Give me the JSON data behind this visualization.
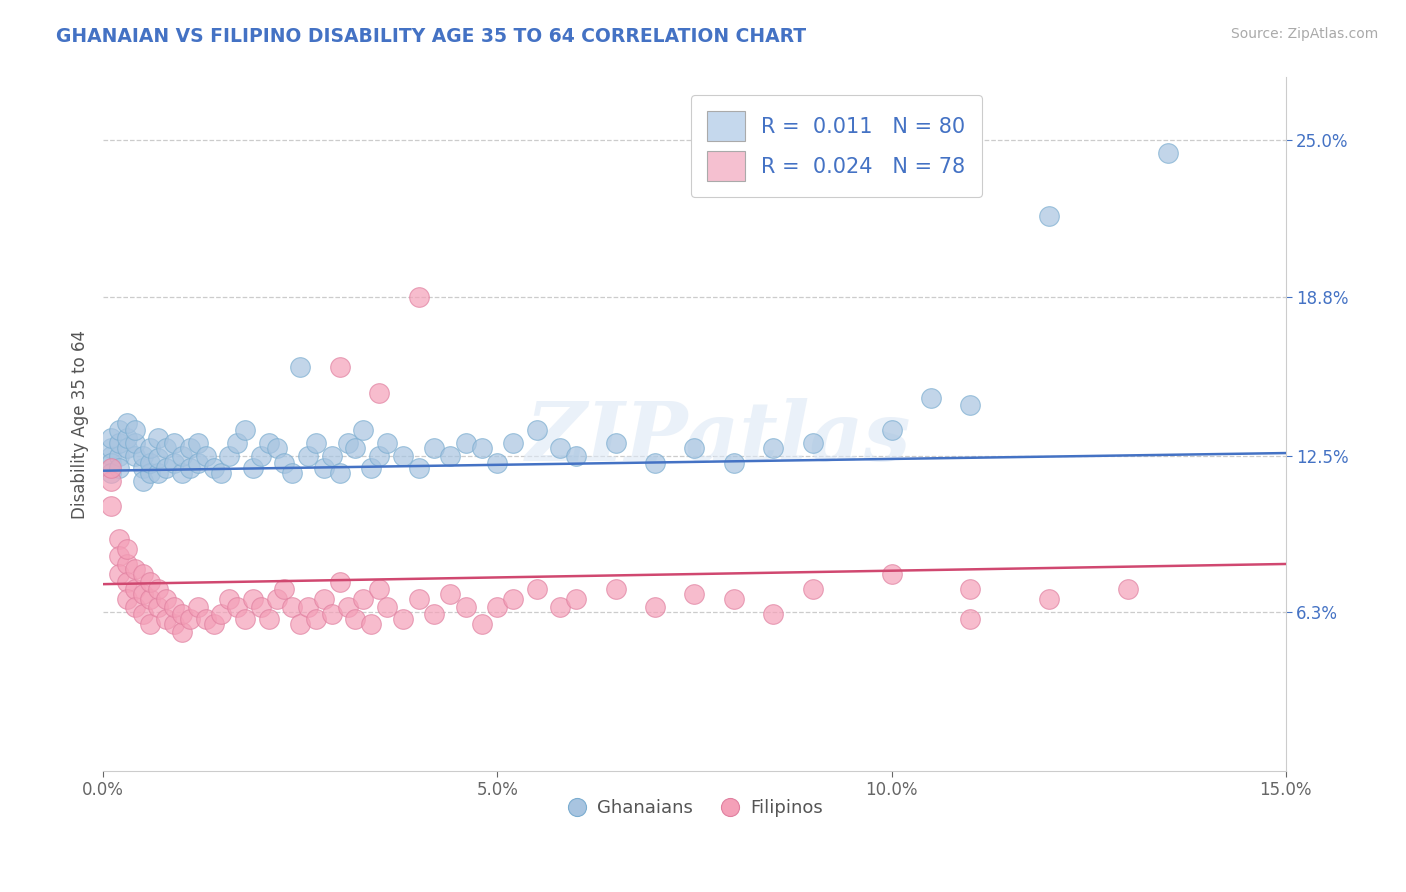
{
  "title": "GHANAIAN VS FILIPINO DISABILITY AGE 35 TO 64 CORRELATION CHART",
  "source": "Source: ZipAtlas.com",
  "ylabel": "Disability Age 35 to 64",
  "xlim": [
    0.0,
    0.15
  ],
  "ylim": [
    0.0,
    0.275
  ],
  "xticks": [
    0.0,
    0.05,
    0.1,
    0.15
  ],
  "xticklabels": [
    "0.0%",
    "5.0%",
    "10.0%",
    "15.0%"
  ],
  "ytick_positions": [
    0.063,
    0.125,
    0.188,
    0.25
  ],
  "ytick_labels": [
    "6.3%",
    "12.5%",
    "18.8%",
    "25.0%"
  ],
  "blue_R": 0.011,
  "blue_N": 80,
  "pink_R": 0.024,
  "pink_N": 78,
  "blue_color": "#a8c4e0",
  "pink_color": "#f4a0b8",
  "blue_line_color": "#4472c4",
  "pink_line_color": "#d04870",
  "legend_label_blue": "Ghanaians",
  "legend_label_pink": "Filipinos",
  "watermark": "ZIPatlas",
  "blue_line_start": 0.119,
  "blue_line_end": 0.126,
  "pink_line_start": 0.074,
  "pink_line_end": 0.082,
  "blue_scatter_x": [
    0.001,
    0.001,
    0.001,
    0.001,
    0.001,
    0.002,
    0.002,
    0.002,
    0.002,
    0.003,
    0.003,
    0.003,
    0.004,
    0.004,
    0.004,
    0.005,
    0.005,
    0.005,
    0.006,
    0.006,
    0.006,
    0.007,
    0.007,
    0.007,
    0.008,
    0.008,
    0.009,
    0.009,
    0.01,
    0.01,
    0.011,
    0.011,
    0.012,
    0.012,
    0.013,
    0.014,
    0.015,
    0.016,
    0.017,
    0.018,
    0.019,
    0.02,
    0.021,
    0.022,
    0.023,
    0.024,
    0.025,
    0.026,
    0.027,
    0.028,
    0.029,
    0.03,
    0.031,
    0.032,
    0.033,
    0.034,
    0.035,
    0.036,
    0.038,
    0.04,
    0.042,
    0.044,
    0.046,
    0.048,
    0.05,
    0.052,
    0.055,
    0.058,
    0.06,
    0.065,
    0.07,
    0.075,
    0.08,
    0.085,
    0.09,
    0.1,
    0.105,
    0.11,
    0.12,
    0.135
  ],
  "blue_scatter_y": [
    0.125,
    0.128,
    0.132,
    0.122,
    0.118,
    0.125,
    0.13,
    0.135,
    0.12,
    0.128,
    0.132,
    0.138,
    0.125,
    0.13,
    0.135,
    0.12,
    0.125,
    0.115,
    0.118,
    0.122,
    0.128,
    0.118,
    0.124,
    0.132,
    0.12,
    0.128,
    0.122,
    0.13,
    0.118,
    0.125,
    0.12,
    0.128,
    0.122,
    0.13,
    0.125,
    0.12,
    0.118,
    0.125,
    0.13,
    0.135,
    0.12,
    0.125,
    0.13,
    0.128,
    0.122,
    0.118,
    0.16,
    0.125,
    0.13,
    0.12,
    0.125,
    0.118,
    0.13,
    0.128,
    0.135,
    0.12,
    0.125,
    0.13,
    0.125,
    0.12,
    0.128,
    0.125,
    0.13,
    0.128,
    0.122,
    0.13,
    0.135,
    0.128,
    0.125,
    0.13,
    0.122,
    0.128,
    0.122,
    0.128,
    0.13,
    0.135,
    0.148,
    0.145,
    0.22,
    0.245
  ],
  "pink_scatter_x": [
    0.001,
    0.001,
    0.001,
    0.002,
    0.002,
    0.002,
    0.003,
    0.003,
    0.003,
    0.003,
    0.004,
    0.004,
    0.004,
    0.005,
    0.005,
    0.005,
    0.006,
    0.006,
    0.006,
    0.007,
    0.007,
    0.008,
    0.008,
    0.009,
    0.009,
    0.01,
    0.01,
    0.011,
    0.012,
    0.013,
    0.014,
    0.015,
    0.016,
    0.017,
    0.018,
    0.019,
    0.02,
    0.021,
    0.022,
    0.023,
    0.024,
    0.025,
    0.026,
    0.027,
    0.028,
    0.029,
    0.03,
    0.031,
    0.032,
    0.033,
    0.034,
    0.035,
    0.036,
    0.038,
    0.04,
    0.042,
    0.044,
    0.046,
    0.048,
    0.05,
    0.052,
    0.055,
    0.058,
    0.06,
    0.065,
    0.07,
    0.075,
    0.08,
    0.085,
    0.09,
    0.1,
    0.11,
    0.12,
    0.13,
    0.03,
    0.035,
    0.04,
    0.11
  ],
  "pink_scatter_y": [
    0.115,
    0.12,
    0.105,
    0.092,
    0.085,
    0.078,
    0.082,
    0.088,
    0.075,
    0.068,
    0.072,
    0.08,
    0.065,
    0.07,
    0.078,
    0.062,
    0.068,
    0.075,
    0.058,
    0.065,
    0.072,
    0.06,
    0.068,
    0.058,
    0.065,
    0.055,
    0.062,
    0.06,
    0.065,
    0.06,
    0.058,
    0.062,
    0.068,
    0.065,
    0.06,
    0.068,
    0.065,
    0.06,
    0.068,
    0.072,
    0.065,
    0.058,
    0.065,
    0.06,
    0.068,
    0.062,
    0.075,
    0.065,
    0.06,
    0.068,
    0.058,
    0.072,
    0.065,
    0.06,
    0.068,
    0.062,
    0.07,
    0.065,
    0.058,
    0.065,
    0.068,
    0.072,
    0.065,
    0.068,
    0.072,
    0.065,
    0.07,
    0.068,
    0.062,
    0.072,
    0.078,
    0.072,
    0.068,
    0.072,
    0.16,
    0.15,
    0.188,
    0.06
  ]
}
